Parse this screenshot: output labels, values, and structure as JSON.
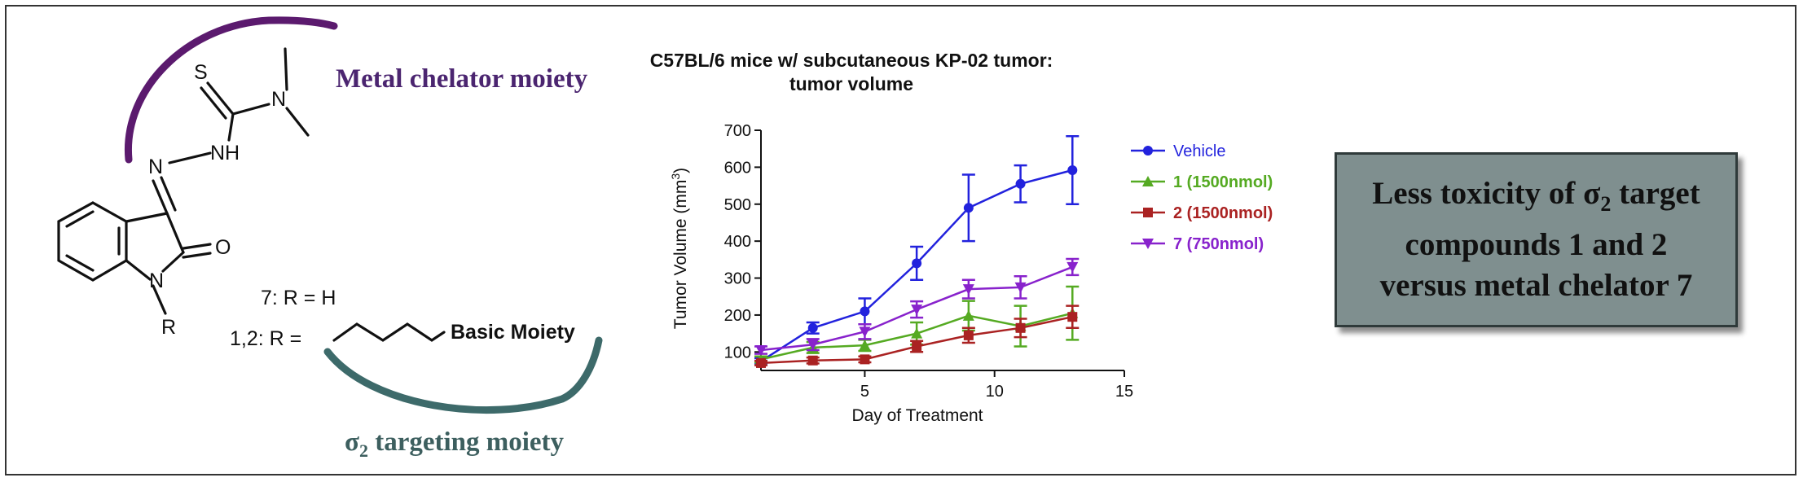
{
  "molecule": {
    "atom_S": "S",
    "atom_N_dimethyl": "N",
    "atom_NH": "NH",
    "atom_N_imine": "N",
    "atom_O": "O",
    "atom_N_ring": "N",
    "atom_R": "R",
    "r_def_7": "7: R = H",
    "r_def_12": "1,2: R =",
    "basic_moiety": "Basic Moiety",
    "metal_label": "Metal chelator moiety",
    "sigma_label_prefix": "σ",
    "sigma_label_sub": "2",
    "sigma_label_suffix": " targeting moiety",
    "colors": {
      "metal_arc": "#5b1a6e",
      "metal_text": "#4b2570",
      "sigma_arc": "#3d6a6a",
      "sigma_text": "#3d5f5f"
    }
  },
  "conclusion": {
    "line1_prefix": "Less toxicity of σ",
    "line1_sub": "2",
    "line1_suffix": " target",
    "line2": "compounds 1 and 2",
    "line3": "versus metal chelator 7",
    "background": "#7f8f8f"
  },
  "chart_data": {
    "type": "line",
    "title_line1": "C57BL/6 mice w/ subcutaneous KP-02 tumor:",
    "title_line2": "tumor volume",
    "xlabel": "Day of Treatment",
    "ylabel_text": "Tumor Volume  (mm",
    "ylabel_sup": "3",
    "ylabel_close": ")",
    "xlim": [
      1,
      15
    ],
    "ylim": [
      50,
      700
    ],
    "xticks": [
      5,
      10,
      15
    ],
    "yticks": [
      100,
      200,
      300,
      400,
      500,
      600,
      700
    ],
    "grid": false,
    "legend_position": "top-right",
    "series": [
      {
        "name": "Vehicle",
        "color": "#2222dd",
        "marker": "circle",
        "x": [
          1,
          3,
          5,
          7,
          9,
          11,
          13
        ],
        "y": [
          75,
          165,
          210,
          340,
          490,
          555,
          592
        ],
        "err": [
          8,
          15,
          35,
          45,
          90,
          50,
          92
        ]
      },
      {
        "name": "1 (1500nmol)",
        "color": "#55aa22",
        "marker": "triangle-up",
        "x": [
          1,
          3,
          5,
          7,
          9,
          11,
          13
        ],
        "y": [
          80,
          112,
          118,
          150,
          198,
          170,
          205
        ],
        "err": [
          8,
          15,
          15,
          30,
          40,
          55,
          72
        ]
      },
      {
        "name": "2 (1500nmol)",
        "color": "#aa2222",
        "marker": "square",
        "x": [
          1,
          3,
          5,
          7,
          9,
          11,
          13
        ],
        "y": [
          70,
          77,
          80,
          115,
          145,
          165,
          195
        ],
        "err": [
          6,
          8,
          8,
          15,
          20,
          25,
          30
        ]
      },
      {
        "name": "7 (750nmol)",
        "color": "#8822cc",
        "marker": "triangle-down",
        "x": [
          1,
          3,
          5,
          7,
          9,
          11,
          13
        ],
        "y": [
          105,
          120,
          155,
          215,
          270,
          275,
          330
        ],
        "err": [
          10,
          15,
          20,
          22,
          25,
          30,
          22
        ]
      }
    ]
  }
}
